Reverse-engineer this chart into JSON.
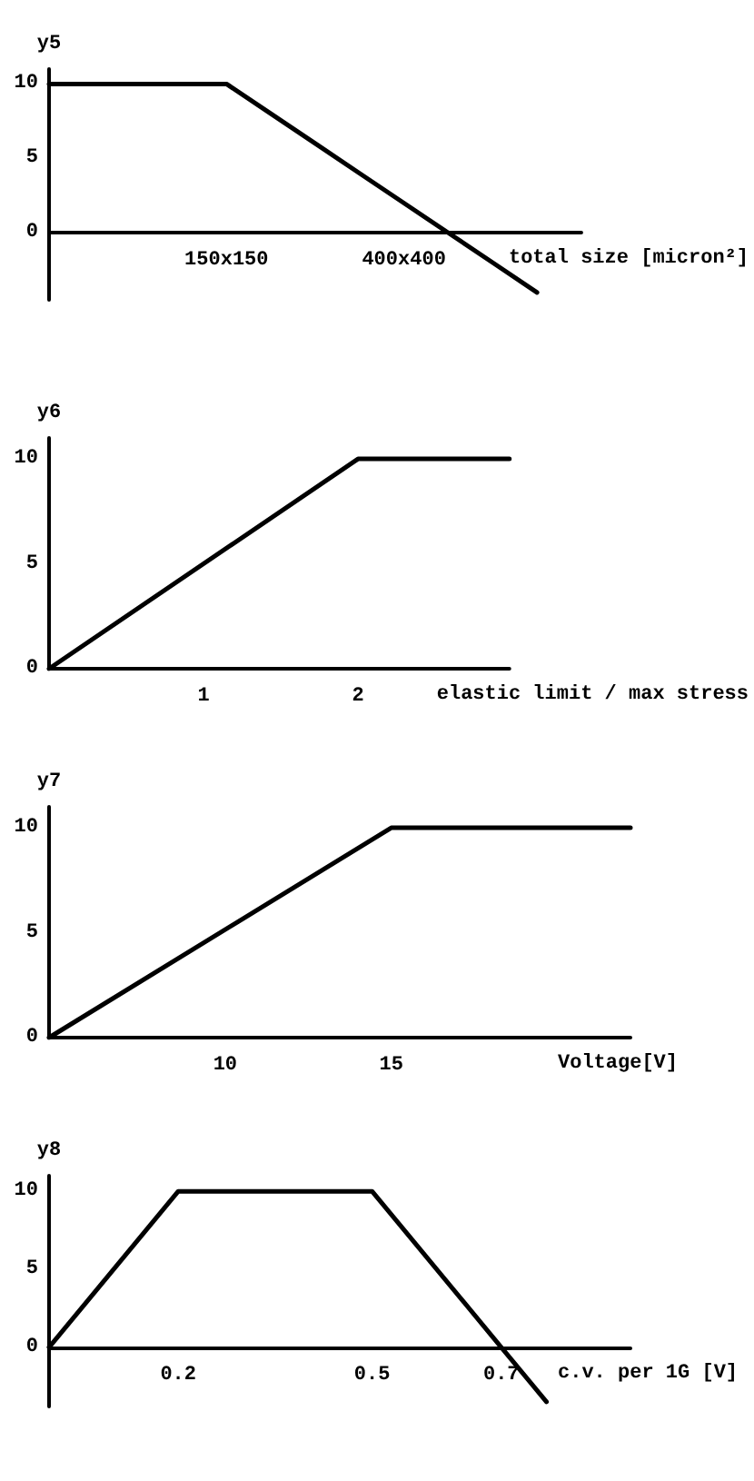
{
  "chart_data": [
    {
      "type": "line",
      "ylabel": "y5",
      "xlabel": "total size [micron²]",
      "categories": [
        null,
        null,
        null,
        null,
        "150x150",
        null,
        null,
        null,
        "400x400",
        null,
        null,
        null,
        null
      ],
      "values": [
        10,
        10,
        10,
        10,
        10,
        8,
        6,
        4,
        2,
        0,
        -2,
        -4,
        null
      ],
      "color": "#000000",
      "ylim": [
        -4.5,
        11
      ],
      "yticks": [
        0,
        5,
        10
      ],
      "marker": "none",
      "line_style": "solid"
    },
    {
      "type": "line",
      "ylabel": "y6",
      "xlabel": "elastic limit / max stress",
      "x": [
        0,
        2,
        2.98
      ],
      "values": [
        0,
        10,
        10
      ],
      "color": "#000000",
      "xlim": [
        0,
        2.98
      ],
      "ylim": [
        0,
        11
      ],
      "xticks": [
        1,
        2
      ],
      "yticks": [
        0,
        5,
        10
      ],
      "marker": "none",
      "line_style": "solid"
    },
    {
      "type": "line",
      "ylabel": "y7",
      "xlabel": "Voltage[V]",
      "x": [
        4.7,
        15,
        22.2
      ],
      "values": [
        0,
        10,
        10
      ],
      "color": "#000000",
      "xlim": [
        4.7,
        22.2
      ],
      "ylim": [
        0,
        11
      ],
      "xticks": [
        10,
        15
      ],
      "yticks": [
        0,
        5,
        10
      ],
      "marker": "none",
      "line_style": "solid"
    },
    {
      "type": "line",
      "ylabel": "y8",
      "xlabel": "c.v. per 1G [V]",
      "x": [
        0,
        0.2,
        0.5,
        0.7,
        0.77
      ],
      "values": [
        0,
        10,
        10,
        0,
        -3.5
      ],
      "color": "#000000",
      "xlim": [
        0,
        0.9
      ],
      "ylim": [
        -3.8,
        11
      ],
      "xticks": [
        0.2,
        0.5,
        0.7
      ],
      "yticks": [
        0,
        5,
        10
      ],
      "marker": "none",
      "line_style": "solid"
    }
  ]
}
